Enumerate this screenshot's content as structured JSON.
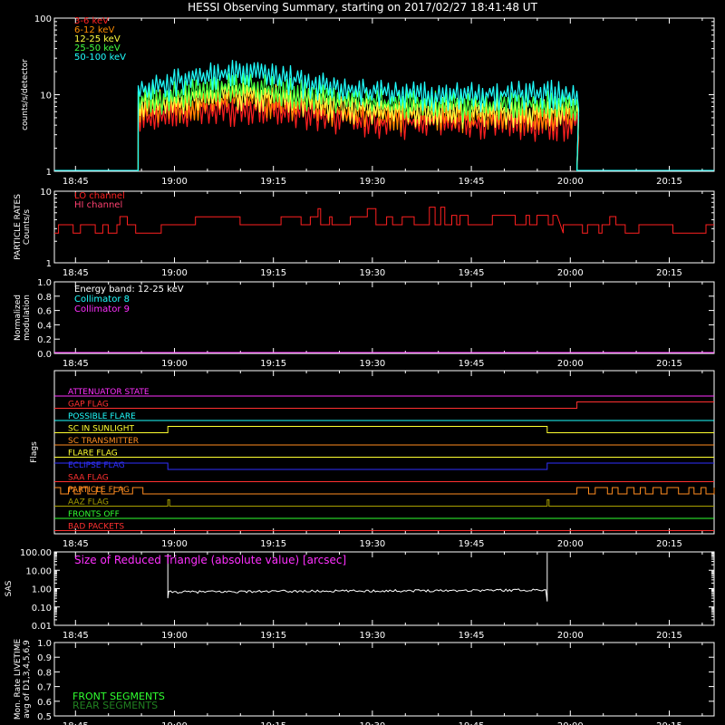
{
  "title": "HESSI Observing Summary, starting on 2017/02/27 18:41:48 UT",
  "time_axis": {
    "range": [
      "18:41:48",
      "20:21:48"
    ],
    "ticks": [
      "18:45",
      "19:00",
      "19:15",
      "19:30",
      "19:45",
      "20:00",
      "20:15"
    ]
  },
  "chart_data": [
    {
      "id": "count-rates",
      "type": "line",
      "ylabel": "counts/s/detector",
      "yscale": "log",
      "ylim": [
        1,
        100
      ],
      "yticks": [
        "1",
        "10",
        "100"
      ],
      "data_window": [
        "18:54:30",
        "20:01:00"
      ],
      "series": [
        {
          "name": "3-6 keV",
          "color": "#ff2020",
          "base": [
            5.2,
            5.8,
            6.5,
            7.0,
            6.7,
            6.0,
            5.3,
            4.8,
            4.6,
            4.5,
            4.4,
            4.4,
            4.4,
            4.4
          ]
        },
        {
          "name": "6-12 keV",
          "color": "#ff8c00",
          "base": [
            6.5,
            7.4,
            8.4,
            9.0,
            8.6,
            7.6,
            6.6,
            6.0,
            5.7,
            5.6,
            5.5,
            5.5,
            5.5,
            5.5
          ]
        },
        {
          "name": "12-25 keV",
          "color": "#ffff40",
          "base": [
            7.6,
            8.7,
            10.0,
            10.8,
            10.2,
            9.0,
            7.8,
            7.0,
            6.7,
            6.6,
            6.5,
            6.5,
            6.6,
            6.5
          ]
        },
        {
          "name": "25-50 keV",
          "color": "#40ff40",
          "base": [
            9.0,
            10.5,
            12.5,
            13.5,
            12.6,
            11.0,
            9.4,
            8.4,
            8.0,
            7.9,
            7.8,
            7.9,
            8.0,
            7.8
          ]
        },
        {
          "name": "50-100 keV",
          "color": "#20ffff",
          "base": [
            12.5,
            15.0,
            18.5,
            20.0,
            18.5,
            15.5,
            13.0,
            11.5,
            10.8,
            10.6,
            10.6,
            10.8,
            11.0,
            10.6
          ]
        }
      ]
    },
    {
      "id": "particle-rates",
      "type": "line",
      "ylabel": "PARTICLE RATES Counts/s",
      "yscale": "log",
      "ylim": [
        1,
        10
      ],
      "yticks": [
        "1",
        "10"
      ],
      "series": [
        {
          "name": "LO channel",
          "color": "#ff2020",
          "level_segments": [
            {
              "t": [
                "18:41:48",
                "18:58:00"
              ],
              "lo": 2.6,
              "hi": 3.4
            },
            {
              "t": [
                "18:58:00",
                "19:37:00"
              ],
              "lo": 3.4,
              "hi": 4.4
            },
            {
              "t": [
                "19:37:00",
                "19:58:00"
              ],
              "lo": 3.4,
              "hi": 4.6
            },
            {
              "t": [
                "19:58:00",
                "20:21:48"
              ],
              "lo": 2.6,
              "hi": 3.4
            }
          ]
        },
        {
          "name": "HI channel",
          "color": "#ff4070"
        }
      ]
    },
    {
      "id": "modulation",
      "type": "line",
      "ylabel": "Normalized modulation",
      "ylim": [
        0.0,
        1.0
      ],
      "yticks": [
        "0.0",
        "0.2",
        "0.4",
        "0.6",
        "0.8",
        "1.0"
      ],
      "energy_band": "Energy band: 12-25 keV",
      "series": [
        {
          "name": "Collimator 8",
          "color": "#20ffff"
        },
        {
          "name": "Collimator 9",
          "color": "#ff30ff",
          "values": [
            0.0
          ]
        }
      ]
    },
    {
      "id": "flags",
      "type": "line",
      "ylabel": "Flags",
      "series": [
        {
          "name": "ATTENUATOR STATE",
          "color": "#ff30ff",
          "segments": [
            [
              "18:41:48",
              "20:21:48",
              0
            ]
          ]
        },
        {
          "name": "GAP FLAG",
          "color": "#ff3030",
          "segments": [
            [
              "18:41:48",
              "20:01:00",
              0
            ],
            [
              "20:01:00",
              "20:21:48",
              1
            ]
          ]
        },
        {
          "name": "POSSIBLE FLARE",
          "color": "#20ffff",
          "segments": [
            [
              "18:41:48",
              "20:21:48",
              0
            ]
          ]
        },
        {
          "name": "SC IN SUNLIGHT",
          "color": "#ffff30",
          "segments": [
            [
              "18:41:48",
              "18:59:00",
              0
            ],
            [
              "18:59:00",
              "19:56:30",
              1
            ],
            [
              "19:56:30",
              "20:21:48",
              0
            ]
          ]
        },
        {
          "name": "SC TRANSMITTER",
          "color": "#ff8c20",
          "segments": [
            [
              "18:41:48",
              "20:21:48",
              0
            ]
          ]
        },
        {
          "name": "FLARE FLAG",
          "color": "#ffff30",
          "segments": [
            [
              "18:41:48",
              "20:21:48",
              0
            ]
          ]
        },
        {
          "name": "ECLIPSE FLAG",
          "color": "#3030ff",
          "segments": [
            [
              "18:41:48",
              "18:59:00",
              1
            ],
            [
              "18:59:00",
              "19:56:30",
              0
            ],
            [
              "19:56:30",
              "20:21:48",
              1
            ]
          ]
        },
        {
          "name": "SAA FLAG",
          "color": "#ff3030",
          "segments": [
            [
              "18:41:48",
              "20:21:48",
              0
            ]
          ]
        },
        {
          "name": "PARTICLE FLAG",
          "color": "#ff8c20",
          "style": "toggling"
        },
        {
          "name": "AAZ FLAG",
          "color": "#a8a000",
          "pulses": [
            "18:59:00",
            "19:56:30"
          ]
        },
        {
          "name": "FRONTS OFF",
          "color": "#30ff30",
          "segments": [
            [
              "18:41:48",
              "20:21:48",
              0
            ]
          ]
        },
        {
          "name": "BAD PACKETS",
          "color": "#ff3030",
          "segments": [
            [
              "18:41:48",
              "20:21:48",
              0
            ]
          ]
        }
      ]
    },
    {
      "id": "sas",
      "type": "line",
      "ylabel": "SAS",
      "yscale": "log",
      "ylim": [
        0.01,
        100
      ],
      "yticks": [
        "0.01",
        "0.10",
        "1.00",
        "10.00",
        "100.00"
      ],
      "annotation": "Size of Reduced Triangle (absolute value) [arcsec]",
      "series": [
        {
          "color": "#ffffff",
          "t": [
            "18:59:00",
            "19:56:30"
          ],
          "values": [
            0.65,
            0.85
          ]
        }
      ]
    },
    {
      "id": "livetime",
      "type": "line",
      "ylabel": "Mon. Rate LIVETIME avg of D1,3,4,5,6,9",
      "ylim": [
        0.5,
        1.0
      ],
      "yticks": [
        "0.5",
        "0.6",
        "0.7",
        "0.8",
        "0.9",
        "1.0"
      ],
      "series": [
        {
          "name": "FRONT SEGMENTS",
          "color": "#30ff30"
        },
        {
          "name": "REAR SEGMENTS",
          "color": "#208020"
        }
      ]
    }
  ]
}
